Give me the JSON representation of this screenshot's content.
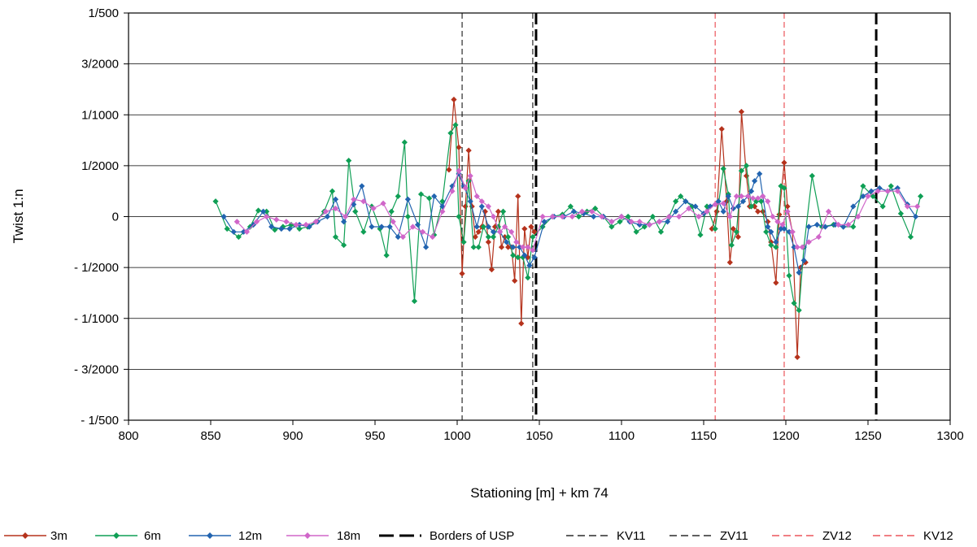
{
  "chart_data": {
    "type": "line",
    "xlabel": "Stationing [m] + km 74",
    "ylabel": "Twist 1:n",
    "xlim": [
      800,
      1300
    ],
    "x_ticks": [
      800,
      850,
      900,
      950,
      1000,
      1050,
      1100,
      1150,
      1200,
      1250,
      1300
    ],
    "ylim": [
      -0.002,
      0.002
    ],
    "y_ticks": [
      {
        "value": 0.002,
        "label": "1/500"
      },
      {
        "value": 0.0015,
        "label": "3/2000"
      },
      {
        "value": 0.001,
        "label": "1/1000"
      },
      {
        "value": 0.0005,
        "label": "1/2000"
      },
      {
        "value": 0,
        "label": "0"
      },
      {
        "value": -0.0005,
        "label": "-     1/2000"
      },
      {
        "value": -0.001,
        "label": "-     1/1000"
      },
      {
        "value": -0.0015,
        "label": "-     3/2000"
      },
      {
        "value": -0.002,
        "label": "-     1/500"
      }
    ],
    "grid": "horizontal",
    "legend_position": "bottom",
    "colors": {
      "3m": "#b5321c",
      "6m": "#0f9f55",
      "12m": "#2264b0",
      "18m": "#d066c9",
      "usp": "#000000",
      "kv11": "#000000",
      "zv11": "#000000",
      "zv12": "#e8333a",
      "kv12": "#e8333a"
    },
    "series": [
      {
        "name": "3m",
        "color_key": "3m",
        "x": [
          995,
          998,
          1001,
          1003,
          1005,
          1007,
          1009,
          1011,
          1013,
          1015,
          1017,
          1019,
          1021,
          1023,
          1025,
          1027,
          1029,
          1031,
          1033,
          1035,
          1037,
          1039,
          1041,
          1043,
          1045,
          1047
        ],
        "y": [
          0.00046,
          0.00115,
          0.00068,
          -0.00056,
          0.0001,
          0.00065,
          0.0001,
          -0.0002,
          -0.00015,
          -0.0001,
          5e-05,
          -0.00025,
          -0.00052,
          -0.0001,
          5e-05,
          -0.0003,
          -0.0002,
          -0.0003,
          -0.0003,
          -0.00063,
          0.0002,
          -0.00105,
          -0.00012,
          -0.0004,
          -0.0001,
          -0.00015
        ]
      },
      {
        "name": "3m",
        "color_key": "3m",
        "x": [
          1155,
          1158,
          1161,
          1164,
          1166,
          1168,
          1171,
          1173,
          1176,
          1178,
          1181,
          1183,
          1186,
          1189,
          1191,
          1194,
          1196,
          1199,
          1201,
          1204,
          1207,
          1209,
          1212
        ],
        "y": [
          -0.00012,
          5e-05,
          0.00086,
          0.00015,
          -0.00045,
          -0.00012,
          -0.0002,
          0.00103,
          0.0004,
          0.0001,
          0.0001,
          5e-05,
          5e-05,
          -5e-05,
          -0.00025,
          -0.00065,
          2e-05,
          0.00053,
          0.0001,
          -0.00015,
          -0.00138,
          -0.0005,
          -0.00045
        ]
      },
      {
        "name": "6m",
        "color_key": "6m",
        "x": [
          853,
          860,
          867,
          874,
          879,
          884,
          889,
          894,
          899,
          904,
          909,
          914,
          919,
          924,
          926,
          931,
          934,
          938,
          943,
          948,
          953,
          957,
          960,
          964,
          968,
          970,
          974,
          978,
          983,
          986,
          991,
          996,
          999,
          1001,
          1004,
          1007,
          1010,
          1013,
          1016,
          1019,
          1022,
          1025,
          1028,
          1031,
          1034,
          1037,
          1040,
          1043,
          1046,
          1052,
          1058,
          1064,
          1069,
          1074,
          1079,
          1084,
          1089,
          1094,
          1099,
          1104,
          1109,
          1114,
          1119,
          1124,
          1129,
          1133,
          1136,
          1139,
          1143,
          1148,
          1152,
          1157,
          1162,
          1165,
          1167,
          1170,
          1173,
          1176,
          1179,
          1182,
          1185,
          1188,
          1191,
          1194,
          1197,
          1199,
          1202,
          1205,
          1208,
          1211,
          1216,
          1222,
          1229,
          1235,
          1241,
          1247,
          1253,
          1259,
          1264,
          1270,
          1276,
          1282
        ],
        "y": [
          0.00015,
          -0.00012,
          -0.0002,
          -0.0001,
          6e-05,
          5e-05,
          -0.00013,
          -0.0001,
          -8e-05,
          -0.00012,
          -0.0001,
          -5e-05,
          5e-05,
          0.00025,
          -0.0002,
          -0.00028,
          0.00055,
          5e-05,
          -0.00015,
          0.0001,
          -0.00012,
          -0.00038,
          5e-05,
          0.0002,
          0.00073,
          0.0,
          -0.00083,
          0.00022,
          0.00018,
          -0.00018,
          0.00015,
          0.00082,
          0.0009,
          0.0,
          -0.00025,
          0.00035,
          -0.0003,
          -0.0003,
          -0.0001,
          -0.0002,
          -0.0002,
          -0.0001,
          5e-05,
          -0.0002,
          -0.00038,
          -0.0004,
          -0.0004,
          -0.0006,
          -0.0002,
          -0.0001,
          0.0,
          2e-05,
          0.0001,
          0.0,
          5e-05,
          8e-05,
          0.0,
          -0.0001,
          -5e-05,
          0.0,
          -0.00015,
          -0.0001,
          0.0,
          -0.00015,
          0.0,
          0.00015,
          0.0002,
          0.00015,
          0.0001,
          -0.00018,
          0.0001,
          -0.00012,
          0.00047,
          0.00022,
          -0.00028,
          -0.00015,
          0.00045,
          0.0005,
          0.0001,
          0.00015,
          0.00015,
          -0.00015,
          -0.00028,
          -0.0003,
          0.0003,
          0.00028,
          -0.00058,
          -0.00085,
          -0.00092,
          -0.0003,
          0.0004,
          -0.0001,
          -8e-05,
          -0.0001,
          -0.0001,
          0.0003,
          0.0002,
          0.0001,
          0.0003,
          3e-05,
          -0.0002,
          0.0002
        ]
      },
      {
        "name": "12m",
        "color_key": "12m",
        "x": [
          858,
          864,
          870,
          876,
          882,
          887,
          893,
          898,
          904,
          910,
          915,
          921,
          926,
          931,
          937,
          942,
          948,
          954,
          959,
          964,
          970,
          976,
          981,
          986,
          991,
          997,
          1001,
          1004,
          1008,
          1012,
          1015,
          1019,
          1022,
          1026,
          1030,
          1034,
          1038,
          1041,
          1044,
          1047,
          1053,
          1059,
          1065,
          1071,
          1077,
          1083,
          1089,
          1094,
          1100,
          1105,
          1111,
          1117,
          1123,
          1128,
          1133,
          1139,
          1145,
          1150,
          1154,
          1159,
          1162,
          1165,
          1168,
          1171,
          1174,
          1177,
          1179,
          1181,
          1184,
          1186,
          1189,
          1191,
          1194,
          1197,
          1199,
          1202,
          1205,
          1208,
          1211,
          1214,
          1219,
          1224,
          1230,
          1235,
          1241,
          1247,
          1252,
          1257,
          1262,
          1268,
          1274,
          1279
        ],
        "y": [
          0.0,
          -0.00015,
          -0.00015,
          -8e-05,
          5e-05,
          -0.0001,
          -0.00012,
          -0.00012,
          -8e-05,
          -0.0001,
          -5e-05,
          0.0,
          0.00017,
          -5e-05,
          0.00012,
          0.0003,
          -0.0001,
          -0.0001,
          -0.0001,
          -0.0002,
          0.00017,
          -8e-05,
          -0.0003,
          0.0002,
          0.0001,
          0.0003,
          0.00042,
          0.0003,
          0.00015,
          -0.0001,
          0.0001,
          -0.0001,
          -0.00015,
          -0.00015,
          -0.00025,
          -0.0003,
          -0.0003,
          -0.00038,
          -0.00048,
          -0.0004,
          -5e-05,
          0.0,
          0.0,
          5e-05,
          3e-05,
          0.0,
          0.0,
          -5e-05,
          0.0,
          -5e-05,
          -8e-05,
          -8e-05,
          -5e-05,
          -5e-05,
          5e-05,
          0.00015,
          0.0001,
          3e-05,
          0.0001,
          0.00015,
          5e-05,
          0.0002,
          8e-05,
          0.0001,
          0.00015,
          0.0002,
          0.00025,
          0.00035,
          0.00042,
          0.0002,
          -0.0001,
          -0.00015,
          -0.00025,
          -0.00012,
          -0.00012,
          -0.00015,
          -0.0003,
          -0.00055,
          -0.00043,
          -0.0001,
          -8e-05,
          -0.0001,
          -8e-05,
          -0.0001,
          0.0001,
          0.0002,
          0.00025,
          0.00028,
          0.00025,
          0.00028,
          0.00012,
          0.0
        ]
      },
      {
        "name": "18m",
        "color_key": "18m",
        "x": [
          866,
          872,
          878,
          884,
          890,
          896,
          902,
          908,
          914,
          920,
          926,
          932,
          937,
          943,
          949,
          955,
          961,
          967,
          973,
          979,
          985,
          991,
          997,
          1001,
          1005,
          1008,
          1012,
          1015,
          1019,
          1022,
          1026,
          1029,
          1033,
          1036,
          1040,
          1043,
          1046,
          1052,
          1058,
          1064,
          1070,
          1076,
          1082,
          1088,
          1094,
          1100,
          1106,
          1111,
          1117,
          1123,
          1129,
          1135,
          1141,
          1147,
          1152,
          1157,
          1162,
          1166,
          1170,
          1173,
          1177,
          1180,
          1183,
          1186,
          1189,
          1192,
          1195,
          1198,
          1201,
          1204,
          1207,
          1210,
          1214,
          1220,
          1226,
          1232,
          1238,
          1244,
          1250,
          1256,
          1262,
          1268,
          1274,
          1280
        ],
        "y": [
          -5e-05,
          -0.00015,
          -5e-05,
          0.0,
          -3e-05,
          -5e-05,
          -8e-05,
          -8e-05,
          -5e-05,
          5e-05,
          8e-05,
          0.0,
          0.00017,
          0.00015,
          8e-05,
          0.00013,
          -5e-05,
          -0.0002,
          -0.0001,
          -0.00015,
          -0.0002,
          5e-05,
          0.00025,
          0.00045,
          0.00028,
          0.0004,
          0.0002,
          0.00015,
          0.0001,
          0.0,
          -0.00015,
          -0.0001,
          -0.00015,
          -0.00025,
          -0.0003,
          -0.0003,
          -0.00033,
          0.0,
          0.0,
          0.0,
          0.0,
          5e-05,
          5e-05,
          0.0,
          -5e-05,
          0.0,
          -5e-05,
          -5e-05,
          -8e-05,
          -5e-05,
          0.0,
          0.0,
          8e-05,
          0.0,
          5e-05,
          0.00012,
          0.00013,
          0.0,
          0.0002,
          0.0002,
          0.0002,
          0.00018,
          0.00018,
          0.0002,
          0.00015,
          0.0,
          -5e-05,
          -8e-05,
          5e-05,
          -0.00015,
          -0.0003,
          -0.0003,
          -0.00025,
          -0.0002,
          5e-05,
          -8e-05,
          -8e-05,
          0.0,
          0.0002,
          0.00025,
          0.00025,
          0.00025,
          0.0001,
          0.0001
        ]
      }
    ],
    "vertical_lines": [
      {
        "name": "KV11",
        "x": 1003,
        "color_key": "kv11",
        "style": "thin-dash"
      },
      {
        "name": "ZV11",
        "x": 1046,
        "color_key": "zv11",
        "style": "thin-dash"
      },
      {
        "name": "Borders of USP",
        "x": 1048,
        "color_key": "usp",
        "style": "thick-dash"
      },
      {
        "name": "Borders of USP",
        "x": 1255,
        "color_key": "usp",
        "style": "thick-dash"
      },
      {
        "name": "ZV12",
        "x": 1157,
        "color_key": "zv12",
        "style": "thin-dash"
      },
      {
        "name": "KV12",
        "x": 1199,
        "color_key": "kv12",
        "style": "thin-dash"
      }
    ],
    "legend": [
      {
        "label": "3m",
        "color_key": "3m",
        "kind": "marker"
      },
      {
        "label": "6m",
        "color_key": "6m",
        "kind": "marker"
      },
      {
        "label": "12m",
        "color_key": "12m",
        "kind": "marker"
      },
      {
        "label": "18m",
        "color_key": "18m",
        "kind": "marker"
      },
      {
        "label": "Borders of USP",
        "color_key": "usp",
        "kind": "thick-dash"
      },
      {
        "label": "KV11",
        "color_key": "kv11",
        "kind": "thin-dash"
      },
      {
        "label": "ZV11",
        "color_key": "zv11",
        "kind": "thin-dash"
      },
      {
        "label": "ZV12",
        "color_key": "zv12",
        "kind": "thin-dash"
      },
      {
        "label": "KV12",
        "color_key": "kv12",
        "kind": "thin-dash"
      }
    ]
  }
}
